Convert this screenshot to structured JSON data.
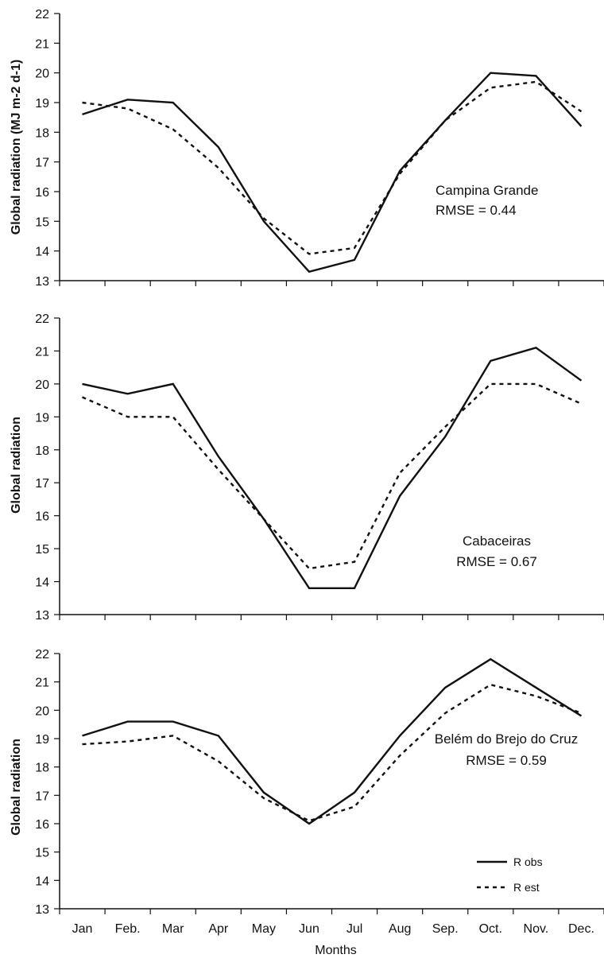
{
  "chart_data": [
    {
      "type": "line",
      "categories": [
        "Jan",
        "Feb.",
        "Mar",
        "Apr",
        "May",
        "Jun",
        "Jul",
        "Aug",
        "Sep.",
        "Oct.",
        "Nov.",
        "Dec."
      ],
      "ylabel": "Global radiation (MJ m-2 d-1)",
      "ylim": [
        13,
        22
      ],
      "yticks": [
        13,
        14,
        15,
        16,
        17,
        18,
        19,
        20,
        21,
        22
      ],
      "annotation": {
        "station": "Campina Grande",
        "rmse": "RMSE = 0.44"
      },
      "series": [
        {
          "name": "R obs",
          "values": [
            18.6,
            19.1,
            19.0,
            17.5,
            15.0,
            13.3,
            13.7,
            16.7,
            18.4,
            20.0,
            19.9,
            18.2
          ]
        },
        {
          "name": "R est",
          "values": [
            19.0,
            18.8,
            18.1,
            16.8,
            15.1,
            13.9,
            14.1,
            16.6,
            18.4,
            19.5,
            19.7,
            18.7
          ]
        }
      ]
    },
    {
      "type": "line",
      "categories": [
        "Jan",
        "Feb.",
        "Mar",
        "Apr",
        "May",
        "Jun",
        "Jul",
        "Aug",
        "Sep.",
        "Oct.",
        "Nov.",
        "Dec."
      ],
      "ylabel": "Global radiation",
      "ylim": [
        13,
        22
      ],
      "yticks": [
        13,
        14,
        15,
        16,
        17,
        18,
        19,
        20,
        21,
        22
      ],
      "annotation": {
        "station": "Cabaceiras",
        "rmse": "RMSE = 0.67"
      },
      "series": [
        {
          "name": "R obs",
          "values": [
            20.0,
            19.7,
            20.0,
            17.8,
            15.9,
            13.8,
            13.8,
            16.6,
            18.4,
            20.7,
            21.1,
            20.1
          ]
        },
        {
          "name": "R est",
          "values": [
            19.6,
            19.0,
            19.0,
            17.4,
            15.9,
            14.4,
            14.6,
            17.3,
            18.7,
            20.0,
            20.0,
            19.4
          ]
        }
      ]
    },
    {
      "type": "line",
      "categories": [
        "Jan",
        "Feb.",
        "Mar",
        "Apr",
        "May",
        "Jun",
        "Jul",
        "Aug",
        "Sep.",
        "Oct.",
        "Nov.",
        "Dec."
      ],
      "ylabel": "Global radiation",
      "xlabel": "Months",
      "ylim": [
        13,
        22
      ],
      "yticks": [
        13,
        14,
        15,
        16,
        17,
        18,
        19,
        20,
        21,
        22
      ],
      "annotation": {
        "station": "Belém do Brejo do Cruz",
        "rmse": "RMSE = 0.59"
      },
      "legend": {
        "placement": "bottom-right",
        "entries": [
          "R obs",
          "R est"
        ]
      },
      "series": [
        {
          "name": "R obs",
          "values": [
            19.1,
            19.6,
            19.6,
            19.1,
            17.1,
            16.0,
            17.1,
            19.1,
            20.8,
            21.8,
            20.8,
            19.8
          ]
        },
        {
          "name": "R est",
          "values": [
            18.8,
            18.9,
            19.1,
            18.2,
            16.9,
            16.1,
            16.6,
            18.4,
            19.9,
            20.9,
            20.5,
            19.9
          ]
        }
      ]
    }
  ]
}
